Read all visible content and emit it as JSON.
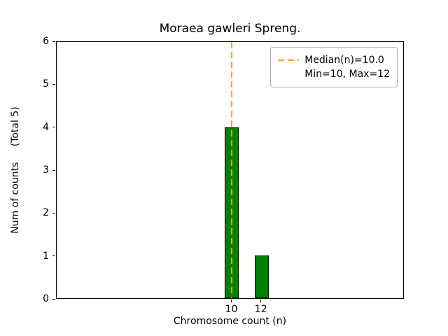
{
  "chart_data": {
    "type": "bar",
    "title": "Moraea gawleri Spreng.",
    "xlabel": "Chromosome count (n)",
    "ylabel": "Num of counts     (Total 5)",
    "categories": [
      10,
      12
    ],
    "values": [
      4,
      1
    ],
    "ylim": [
      0,
      6
    ],
    "yticks": [
      0,
      1,
      2,
      3,
      4,
      5,
      6
    ],
    "bar_color": "#008000",
    "bar_edge_color": "#000000",
    "grid": false,
    "median_line": {
      "x": 10,
      "color": "#FFA500",
      "style": "dashed"
    },
    "legend": {
      "position": "upper right",
      "entries": [
        {
          "handle": "dashed-line",
          "label": "Median(n)=10.0"
        },
        {
          "handle": "none",
          "label": "Min=10, Max=12"
        }
      ]
    }
  }
}
